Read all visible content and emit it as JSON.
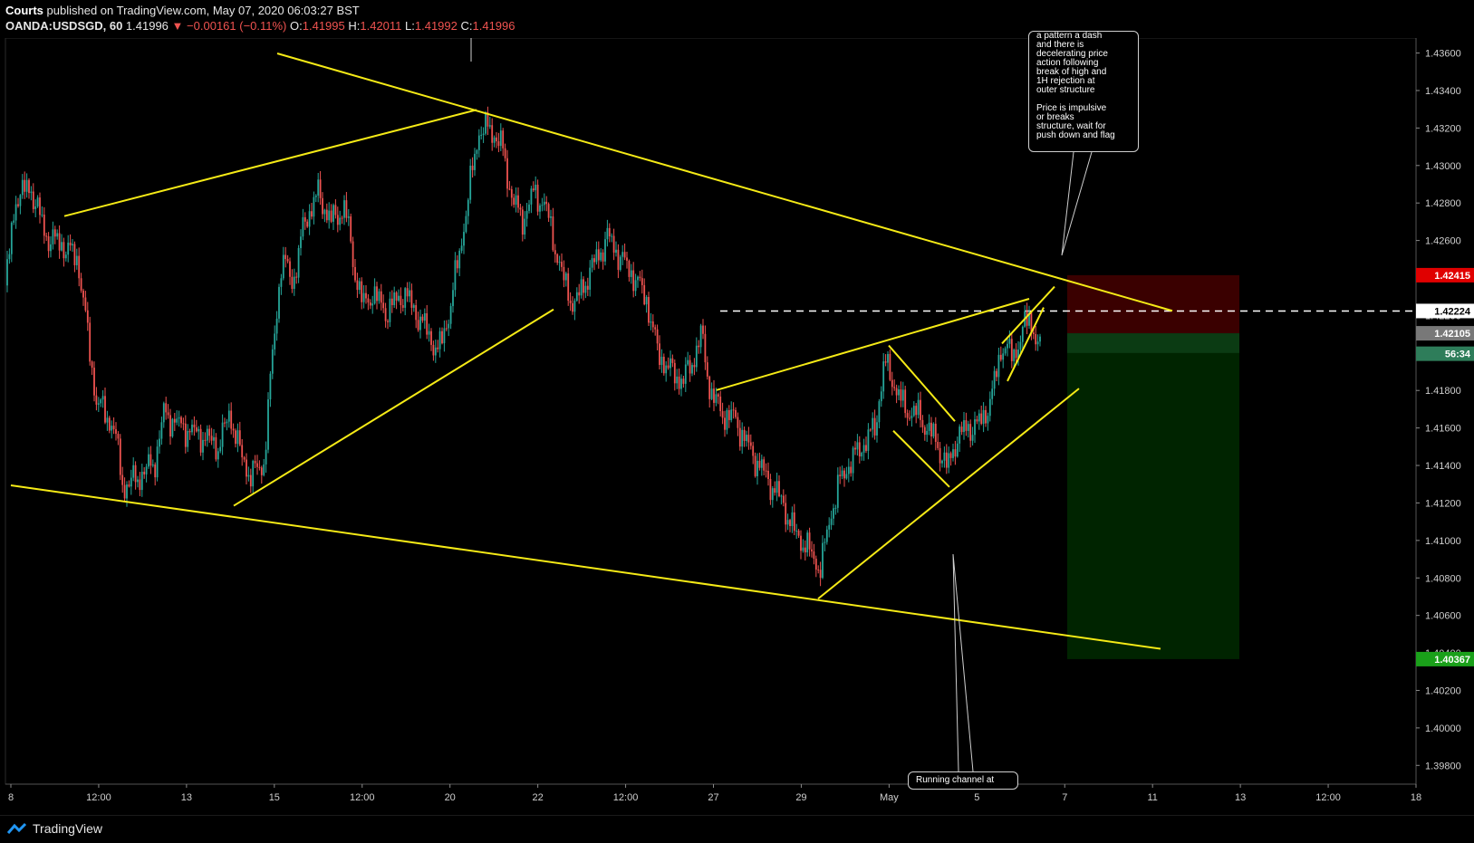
{
  "header": {
    "author": "Courts",
    "published": "published on TradingView.com, May 07, 2020 06:03:27 BST",
    "symbol": "OANDA:USDSGD, 60",
    "last": "1.41996",
    "arrow": "▼",
    "change": "−0.00161 (−0.11%)",
    "o_label": "O:",
    "o": "1.41995",
    "h_label": "H:",
    "h": "1.42011",
    "l_label": "L:",
    "l": "1.41992",
    "c_label": "C:",
    "c": "1.41996"
  },
  "footer": {
    "brand": "TradingView"
  },
  "notes": {
    "top_right": "a pattern a dash\nand there is\ndecelerating price\naction following\nbreak of high and\n1H rejection at\nouter structure\n\nPrice is impulsive\nor breaks\nstructure, wait for\npush down and flag",
    "bottom": "Running channel at"
  },
  "price_labels": [
    {
      "text": "1.42415",
      "price": 1.42415,
      "bg": "#e00000",
      "fg": "#ffffff"
    },
    {
      "text": "1.42224",
      "price": 1.42224,
      "bg": "#ffffff",
      "fg": "#000000"
    },
    {
      "text": "1.42105",
      "price": 1.42105,
      "bg": "#787878",
      "fg": "#ffffff"
    },
    {
      "text": "56:34",
      "price": 1.41996,
      "bg": "#2e7d5a",
      "fg": "#ffffff"
    },
    {
      "text": "1.40367",
      "price": 1.40367,
      "bg": "#1aa01a",
      "fg": "#ffffff"
    }
  ],
  "colors": {
    "up": "#26a69a",
    "down": "#ef5350",
    "trendline": "#f5ea16",
    "stop_zone": "#3a0000",
    "target_zone": "#002400"
  },
  "chart_data": {
    "type": "candlestick",
    "symbol": "OANDA:USDSGD",
    "interval": "60",
    "ylim": [
      1.397,
      1.4368
    ],
    "y_ticks": [
      "1.43600",
      "1.43400",
      "1.43200",
      "1.43000",
      "1.42800",
      "1.42600",
      "1.42400",
      "1.42200",
      "1.42000",
      "1.41800",
      "1.41600",
      "1.41400",
      "1.41200",
      "1.41000",
      "1.40800",
      "1.40600",
      "1.40400",
      "1.40200",
      "1.40000",
      "1.39800"
    ],
    "x_ticks": [
      "8",
      "12:00",
      "13",
      "15",
      "12:00",
      "20",
      "22",
      "12:00",
      "27",
      "29",
      "May",
      "5",
      "7",
      "11",
      "13",
      "12:00",
      "18"
    ],
    "close_path": [
      [
        0,
        1.4236
      ],
      [
        12,
        1.4284
      ],
      [
        28,
        1.4288
      ],
      [
        45,
        1.4262
      ],
      [
        62,
        1.4258
      ],
      [
        80,
        1.425
      ],
      [
        100,
        1.4175
      ],
      [
        120,
        1.416
      ],
      [
        130,
        1.4128
      ],
      [
        150,
        1.4135
      ],
      [
        165,
        1.4142
      ],
      [
        175,
        1.4168
      ],
      [
        190,
        1.4162
      ],
      [
        205,
        1.4158
      ],
      [
        220,
        1.4155
      ],
      [
        235,
        1.415
      ],
      [
        248,
        1.4168
      ],
      [
        260,
        1.4145
      ],
      [
        270,
        1.4135
      ],
      [
        285,
        1.414
      ],
      [
        295,
        1.42
      ],
      [
        305,
        1.425
      ],
      [
        318,
        1.4238
      ],
      [
        330,
        1.427
      ],
      [
        345,
        1.4285
      ],
      [
        360,
        1.427
      ],
      [
        375,
        1.4278
      ],
      [
        385,
        1.4245
      ],
      [
        395,
        1.4225
      ],
      [
        405,
        1.4232
      ],
      [
        420,
        1.4222
      ],
      [
        440,
        1.4232
      ],
      [
        455,
        1.422
      ],
      [
        465,
        1.4212
      ],
      [
        478,
        1.42
      ],
      [
        490,
        1.4222
      ],
      [
        500,
        1.425
      ],
      [
        510,
        1.428
      ],
      [
        522,
        1.4318
      ],
      [
        535,
        1.432
      ],
      [
        548,
        1.431
      ],
      [
        558,
        1.4285
      ],
      [
        570,
        1.427
      ],
      [
        582,
        1.4285
      ],
      [
        595,
        1.428
      ],
      [
        605,
        1.426
      ],
      [
        615,
        1.424
      ],
      [
        628,
        1.4225
      ],
      [
        640,
        1.4238
      ],
      [
        652,
        1.425
      ],
      [
        665,
        1.4262
      ],
      [
        680,
        1.425
      ],
      [
        695,
        1.424
      ],
      [
        708,
        1.4228
      ],
      [
        720,
        1.42
      ],
      [
        735,
        1.419
      ],
      [
        748,
        1.4185
      ],
      [
        758,
        1.4195
      ],
      [
        768,
        1.421
      ],
      [
        778,
        1.418
      ],
      [
        790,
        1.4168
      ],
      [
        805,
        1.4165
      ],
      [
        820,
        1.415
      ],
      [
        832,
        1.414
      ],
      [
        845,
        1.413
      ],
      [
        858,
        1.412
      ],
      [
        870,
        1.4105
      ],
      [
        882,
        1.4098
      ],
      [
        893,
        1.409
      ],
      [
        900,
        1.4085
      ],
      [
        910,
        1.4112
      ],
      [
        920,
        1.413
      ],
      [
        930,
        1.414
      ],
      [
        945,
        1.415
      ],
      [
        960,
        1.416
      ],
      [
        970,
        1.4195
      ],
      [
        980,
        1.4185
      ],
      [
        992,
        1.417
      ],
      [
        1005,
        1.4168
      ],
      [
        1018,
        1.416
      ],
      [
        1030,
        1.415
      ],
      [
        1040,
        1.4138
      ],
      [
        1050,
        1.4155
      ],
      [
        1062,
        1.416
      ],
      [
        1075,
        1.4162
      ],
      [
        1088,
        1.4175
      ],
      [
        1100,
        1.4205
      ],
      [
        1112,
        1.4198
      ],
      [
        1122,
        1.421
      ],
      [
        1130,
        1.422
      ],
      [
        1136,
        1.421
      ],
      [
        1142,
        1.42
      ]
    ],
    "trendlines": [
      [
        [
          300,
          1.43598
        ],
        [
          1288,
          1.42225
        ]
      ],
      [
        [
          6,
          1.41294
        ],
        [
          1275,
          1.40422
        ]
      ],
      [
        [
          65,
          1.4273
        ],
        [
          520,
          1.43297
        ]
      ],
      [
        [
          252,
          1.41185
        ],
        [
          605,
          1.42232
        ]
      ],
      [
        [
          785,
          1.41802
        ],
        [
          1130,
          1.42289
        ]
      ],
      [
        [
          897,
          1.40689
        ],
        [
          1185,
          1.4181
        ]
      ],
      [
        [
          975,
          1.4204
        ],
        [
          1048,
          1.41636
        ]
      ],
      [
        [
          980,
          1.41585
        ],
        [
          1042,
          1.41285
        ]
      ],
      [
        [
          1100,
          1.4205
        ],
        [
          1158,
          1.42354
        ]
      ],
      [
        [
          1106,
          1.4185
        ],
        [
          1146,
          1.42243
        ]
      ]
    ],
    "position": {
      "type": "short",
      "entry": 1.42105,
      "stop": 1.42415,
      "target": 1.40367
    },
    "levels": [
      {
        "price": 1.42224,
        "style": "dashed"
      }
    ]
  }
}
